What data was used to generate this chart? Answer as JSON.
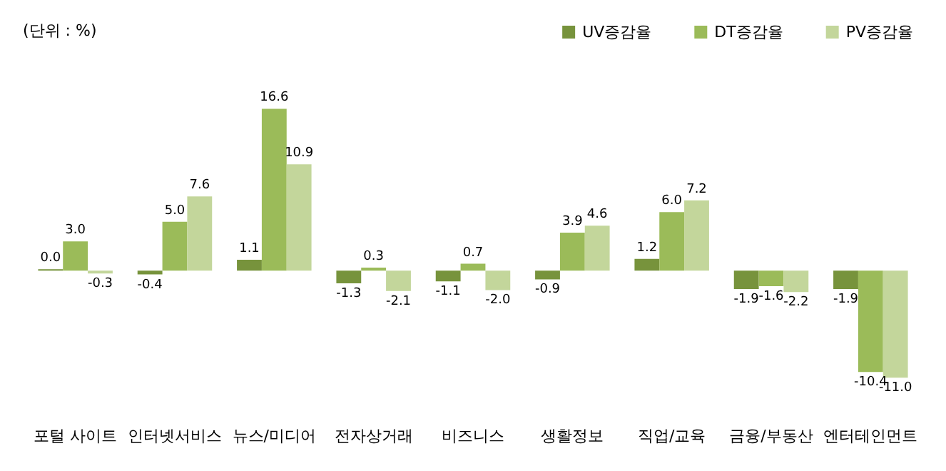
{
  "chart_data": {
    "type": "bar",
    "annotations": [
      "(단위 : %)"
    ],
    "categories": [
      "포털 사이트",
      "인터넷서비스",
      "뉴스/미디어",
      "전자상거래",
      "비즈니스",
      "생활정보",
      "직업/교육",
      "금융/부동산",
      "엔터테인먼트"
    ],
    "series": [
      {
        "name": "UV증감율",
        "color": "#77933c",
        "values": [
          0.0,
          -0.4,
          1.1,
          -1.3,
          -1.1,
          -0.9,
          1.2,
          -1.9,
          -1.9
        ],
        "value_labels": [
          "0.0",
          "-0.4",
          "1.1",
          "-1.3",
          "-1.1",
          "-0.9",
          "1.2",
          "-1.9",
          "-1.9"
        ]
      },
      {
        "name": "DT증감율",
        "color": "#9bbb59",
        "values": [
          3.0,
          5.0,
          16.6,
          0.3,
          0.7,
          3.9,
          6.0,
          -1.6,
          -10.4
        ],
        "value_labels": [
          "3.0",
          "5.0",
          "16.6",
          "0.3",
          "0.7",
          "3.9",
          "6.0",
          "-1.6",
          "-10.4"
        ]
      },
      {
        "name": "PV증감율",
        "color": "#c3d69b",
        "values": [
          -0.3,
          7.6,
          10.9,
          -2.1,
          -2.0,
          4.6,
          7.2,
          -2.2,
          -11.0
        ],
        "value_labels": [
          "-0.3",
          "7.6",
          "10.9",
          "-2.1",
          "-2.0",
          "4.6",
          "7.2",
          "-2.2",
          "-11.0"
        ]
      }
    ],
    "legend": "top right"
  }
}
